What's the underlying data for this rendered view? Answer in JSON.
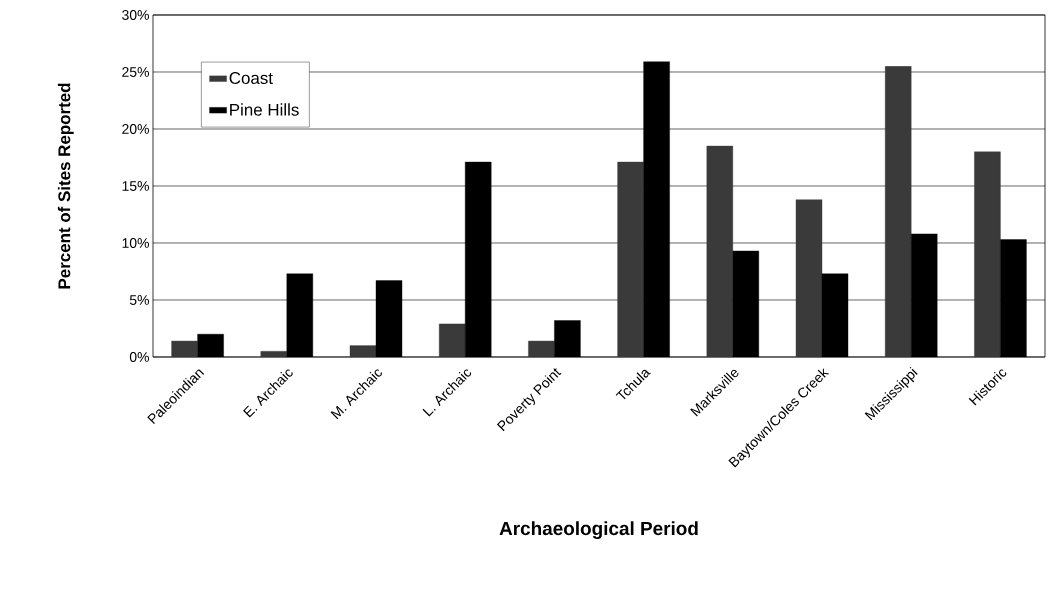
{
  "chart_data": {
    "type": "bar",
    "xlabel": "Archaeological Period",
    "ylabel": "Percent of Sites Reported",
    "categories": [
      "Paleoindian",
      "E. Archaic",
      "M. Archaic",
      "L. Archaic",
      "Poverty Point",
      "Tchula",
      "Marksville",
      "Baytown/Coles Creek",
      "Mississippi",
      "Historic"
    ],
    "series": [
      {
        "name": "Coast",
        "color": "#3a3a3a",
        "values": [
          1.4,
          0.5,
          1.0,
          2.9,
          1.4,
          17.1,
          18.5,
          13.8,
          25.5,
          18.0
        ]
      },
      {
        "name": "Pine Hills",
        "color": "#000000",
        "values": [
          2.0,
          7.3,
          6.7,
          17.1,
          3.2,
          25.9,
          9.3,
          7.3,
          10.8,
          10.3
        ]
      }
    ],
    "ylim": [
      0,
      30
    ],
    "yticks": [
      {
        "value": 0,
        "label": "0%"
      },
      {
        "value": 5,
        "label": "5%"
      },
      {
        "value": 10,
        "label": "10%"
      },
      {
        "value": 15,
        "label": "15%"
      },
      {
        "value": 20,
        "label": "20%"
      },
      {
        "value": 25,
        "label": "25%"
      },
      {
        "value": 30,
        "label": "30%"
      }
    ],
    "grid": "y",
    "legend": "top left"
  }
}
